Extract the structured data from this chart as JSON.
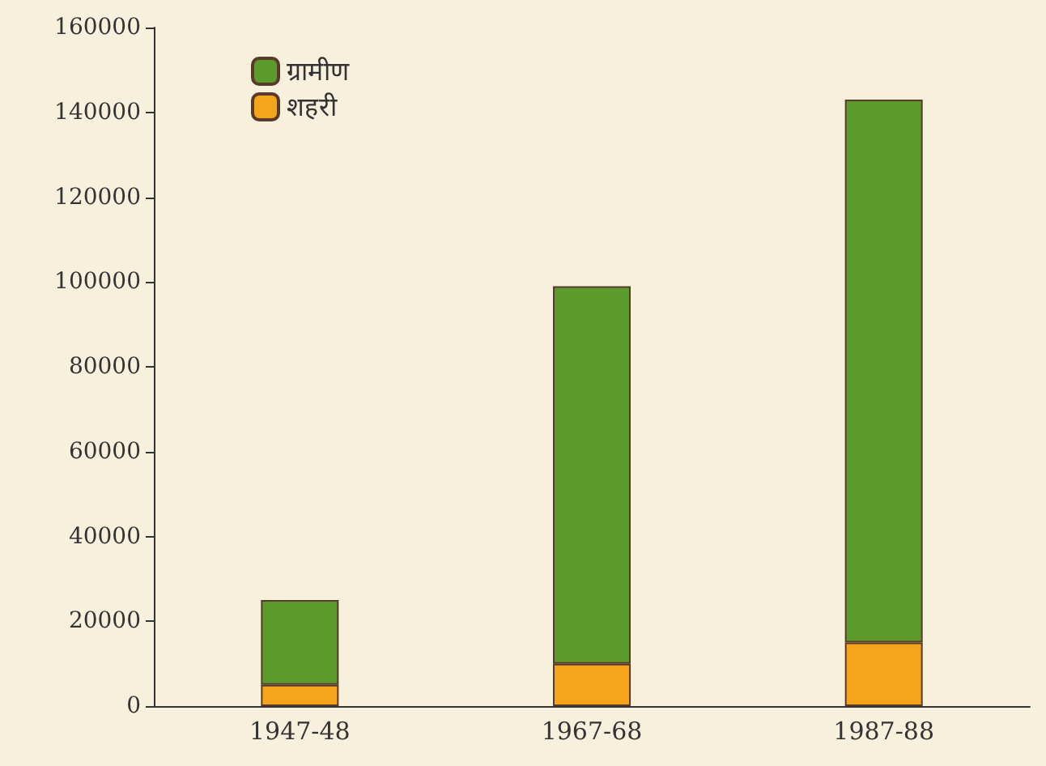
{
  "chart_data": {
    "type": "bar",
    "stacked": true,
    "categories": [
      "1947-48",
      "1967-68",
      "1987-88"
    ],
    "series": [
      {
        "name": "शहरी",
        "color": "#f4a51c",
        "values": [
          5000,
          10000,
          15000
        ]
      },
      {
        "name": "ग्रामीण",
        "color": "#5c9a2c",
        "values": [
          20000,
          89000,
          128000
        ]
      }
    ],
    "ylim": [
      0,
      160000
    ],
    "yticks": [
      0,
      20000,
      40000,
      60000,
      80000,
      100000,
      120000,
      140000,
      160000
    ],
    "grid": false,
    "legend": "top left"
  }
}
